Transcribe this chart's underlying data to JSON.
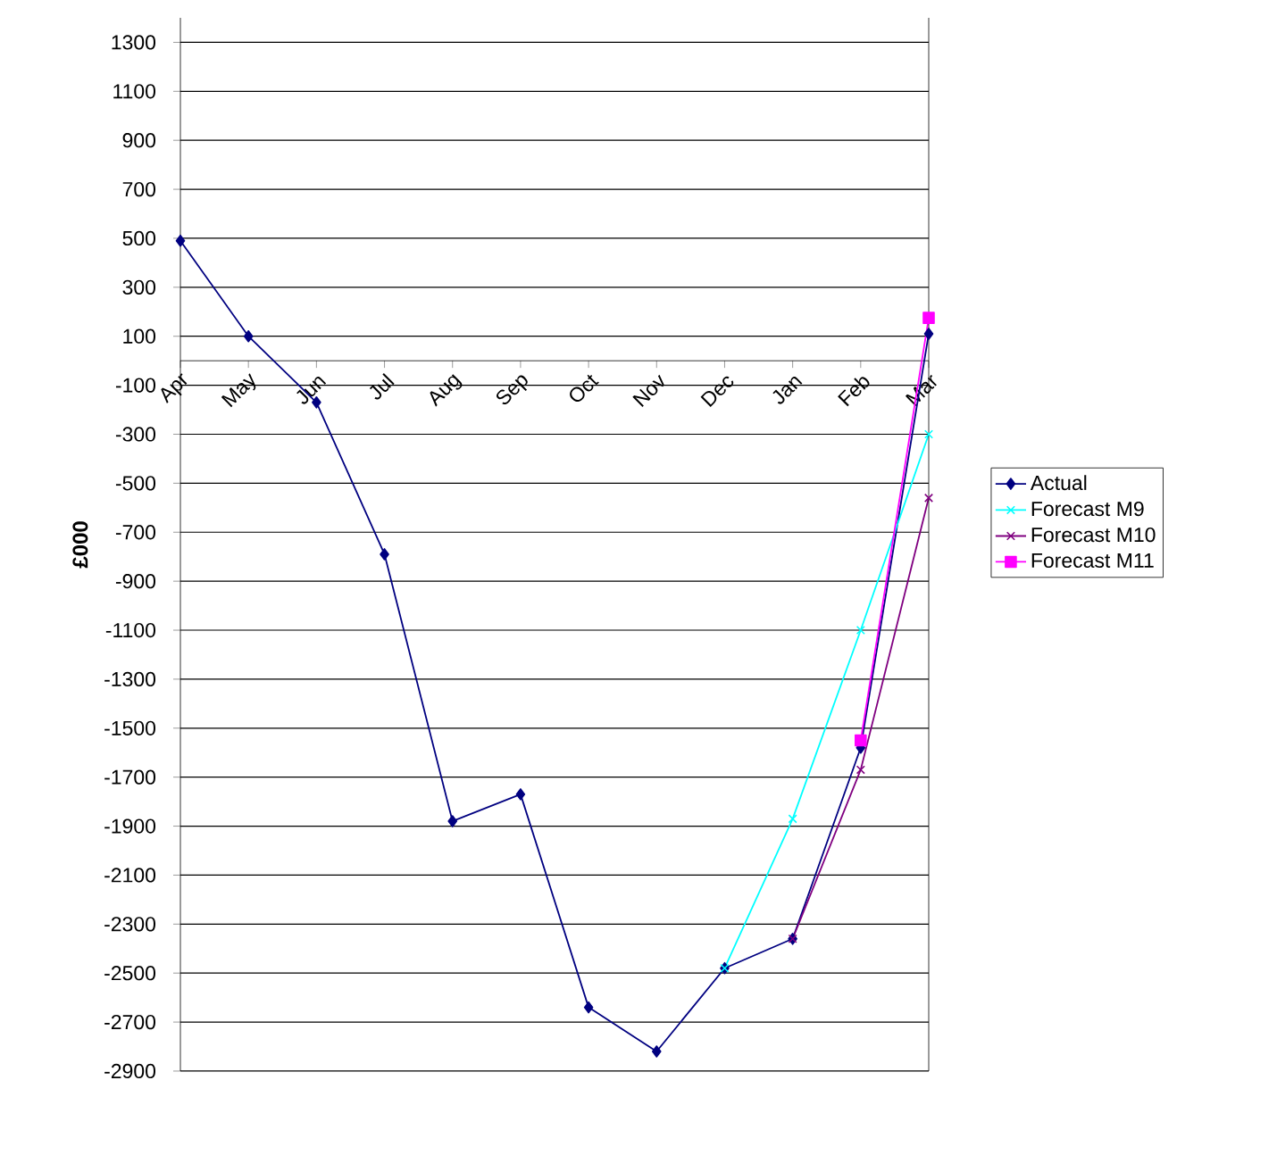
{
  "chart_data": {
    "type": "line",
    "ylabel": "£000",
    "categories": [
      "Apr",
      "May",
      "Jun",
      "Jul",
      "Aug",
      "Sep",
      "Oct",
      "Nov",
      "Dec",
      "Jan",
      "Feb",
      "Mar"
    ],
    "series": [
      {
        "name": "Actual",
        "color": "#000080",
        "marker": "diamond",
        "values": [
          490,
          100,
          -170,
          -790,
          -1880,
          -1770,
          -2640,
          -2820,
          -2480,
          -2360,
          -1580,
          110
        ]
      },
      {
        "name": "Forecast M9",
        "color": "#00ffff",
        "marker": "cross",
        "values": [
          null,
          null,
          null,
          null,
          null,
          null,
          null,
          null,
          -2480,
          -1870,
          -1100,
          -300
        ]
      },
      {
        "name": "Forecast M10",
        "color": "#800080",
        "marker": "cross",
        "values": [
          null,
          null,
          null,
          null,
          null,
          null,
          null,
          null,
          null,
          -2360,
          -1670,
          -560
        ]
      },
      {
        "name": "Forecast M11",
        "color": "#ff00ff",
        "marker": "square",
        "values": [
          null,
          null,
          null,
          null,
          null,
          null,
          null,
          null,
          null,
          null,
          -1550,
          175
        ]
      }
    ],
    "ylim": [
      -2900,
      1400
    ],
    "yticks": [
      -2900,
      -2700,
      -2500,
      -2300,
      -2100,
      -1900,
      -1700,
      -1500,
      -1300,
      -1100,
      -900,
      -700,
      -500,
      -300,
      -100,
      100,
      300,
      500,
      700,
      900,
      1100,
      1300
    ],
    "grid": "y",
    "legend": "right",
    "line_style": "solid"
  }
}
